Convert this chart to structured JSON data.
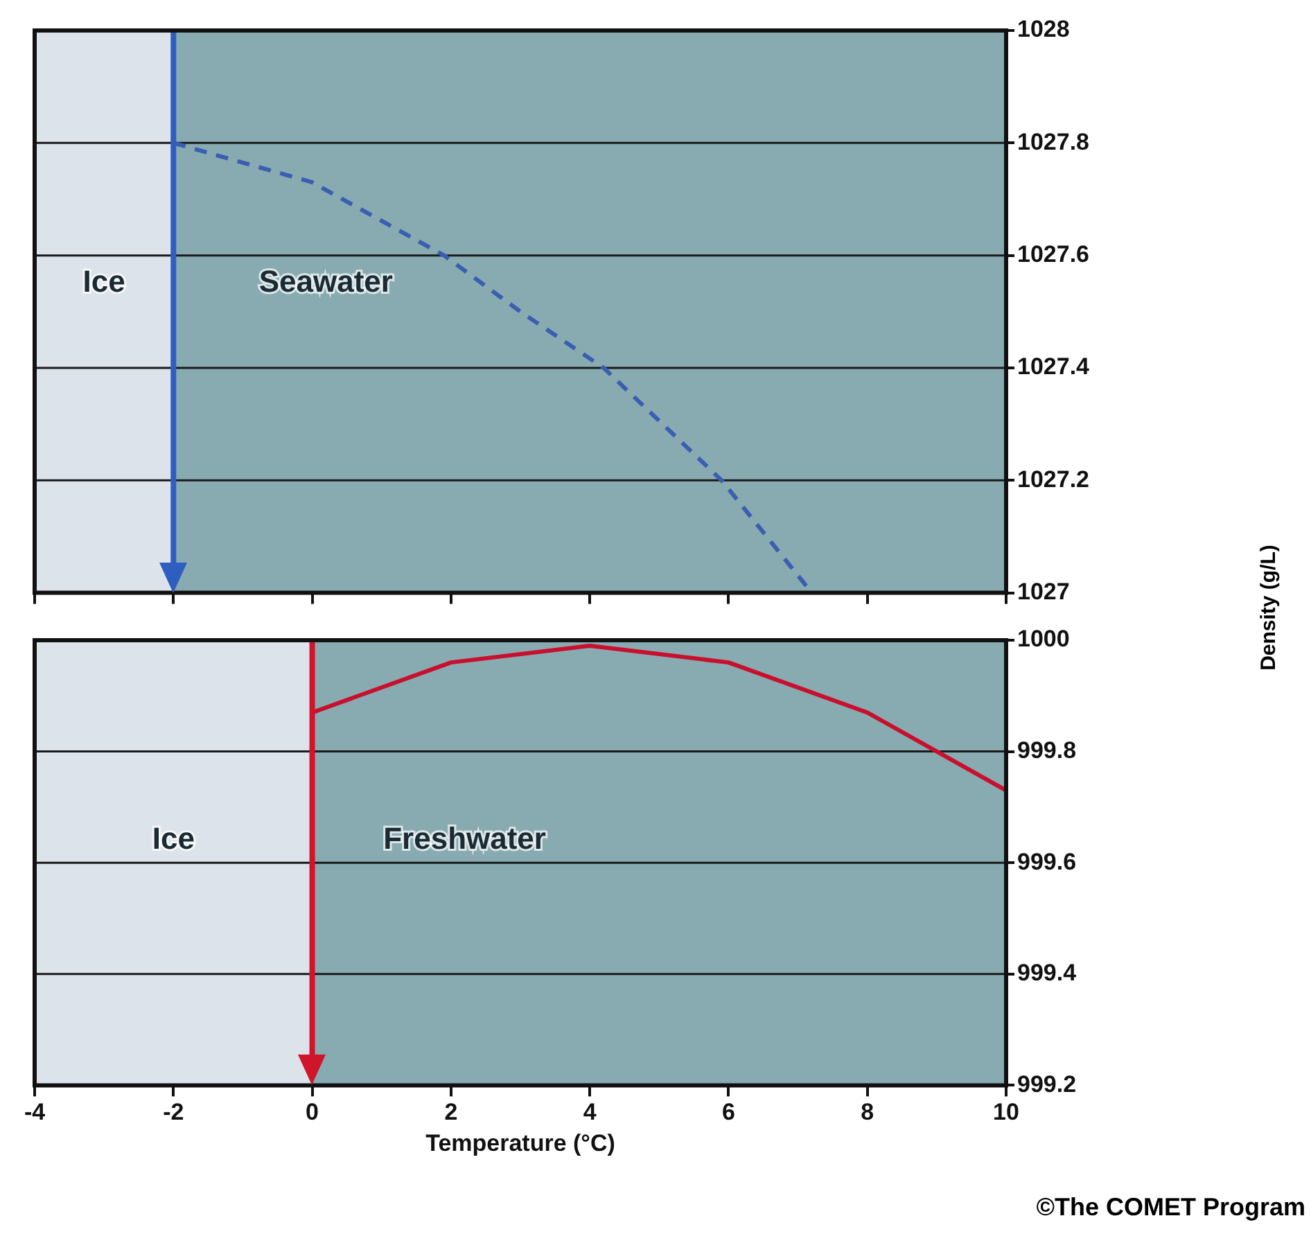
{
  "chart_data": [
    {
      "type": "line",
      "ylabel": "Density (g/L)",
      "xlim": [
        -4,
        10
      ],
      "xticks": [
        -4,
        -2,
        0,
        2,
        4,
        6,
        8,
        10
      ],
      "ylim": [
        1027,
        1028
      ],
      "yticks": [
        1027,
        1027.2,
        1027.4,
        1027.6,
        1027.8,
        1028
      ],
      "tick_labels": "y",
      "grid": "y",
      "legend": false,
      "marker": "none",
      "series": [
        {
          "color": "#3a5fb0",
          "line_style": "dashed",
          "x": [
            -2,
            0,
            1.9,
            3,
            4.2,
            5.9,
            7.2
          ],
          "values": [
            1027.8,
            1027.73,
            1027.6,
            1027.5,
            1027.4,
            1027.2,
            1027
          ]
        }
      ],
      "bands": [
        {
          "axis": "x",
          "from": -4,
          "to": -2,
          "label": "Ice",
          "color": "#dde3ea"
        },
        {
          "axis": "x",
          "from": -2,
          "to": 10,
          "label": "Seawater",
          "color": "#88abb2"
        }
      ],
      "ref_lines": [
        {
          "axis": "x",
          "value": -2,
          "color": "#2f5dc0"
        }
      ]
    },
    {
      "type": "line",
      "xlabel": "Temperature (°C)",
      "xlim": [
        -4,
        10
      ],
      "xticks": [
        -4,
        -2,
        0,
        2,
        4,
        6,
        8,
        10
      ],
      "ylim": [
        999.2,
        1000
      ],
      "yticks": [
        999.2,
        999.4,
        999.6,
        999.8,
        1000
      ],
      "grid": "y",
      "legend": false,
      "marker": "none",
      "series": [
        {
          "color": "#c8102e",
          "line_style": "solid",
          "x": [
            0,
            2,
            4,
            6,
            8,
            10
          ],
          "values": [
            999.87,
            999.96,
            999.99,
            999.96,
            999.87,
            999.73
          ]
        }
      ],
      "bands": [
        {
          "axis": "x",
          "from": -4,
          "to": 0,
          "label": "Ice",
          "color": "#dde3ea"
        },
        {
          "axis": "x",
          "from": 0,
          "to": 10,
          "label": "Freshwater",
          "color": "#88abb2"
        }
      ],
      "ref_lines": [
        {
          "axis": "x",
          "value": 0,
          "color": "#d0142c"
        }
      ],
      "annotations": [
        "©The COMET Program"
      ]
    }
  ]
}
